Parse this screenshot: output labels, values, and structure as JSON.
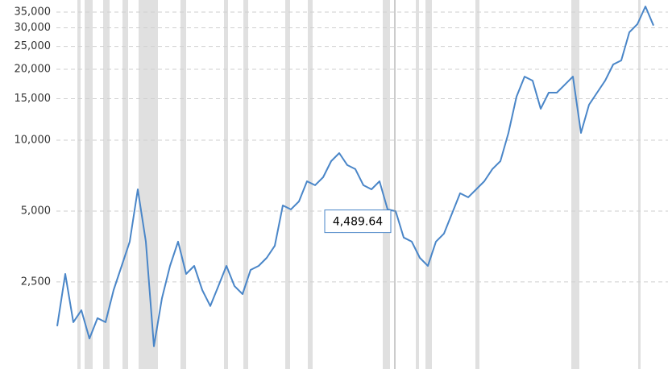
{
  "chart_data": {
    "type": "line",
    "log_scale": true,
    "grid": true,
    "series": [
      {
        "color": "#4a86c8",
        "values": [
          1622,
          2704,
          1686,
          1895,
          1437,
          1754,
          1686,
          2310,
          2924,
          3707,
          6185,
          3707,
          1332,
          2133,
          2924,
          3707,
          2704,
          2924,
          2310,
          1976,
          2401,
          2924,
          2401,
          2220,
          2813,
          2924,
          3164,
          3559,
          5281,
          5080,
          5495,
          6692,
          6436,
          6957,
          8147,
          8817,
          7835,
          7533,
          6436,
          6185,
          6692,
          5080,
          4996,
          3860,
          3707,
          3164,
          2924,
          3707,
          4011,
          4885,
          5947,
          5718,
          6185,
          6692,
          7533,
          8147,
          10734,
          15295,
          18620,
          17900,
          13596,
          15910,
          15910,
          17212,
          18620,
          10734,
          14138,
          15910,
          17900,
          20967,
          21810,
          28720,
          31080,
          36960,
          30670
        ]
      }
    ],
    "xlim": [
      0,
      74
    ],
    "ylim": [
      1067,
      39380
    ],
    "yticks": [
      {
        "value": 2500,
        "label": "2,500"
      },
      {
        "value": 5000,
        "label": "5,000"
      },
      {
        "value": 10000,
        "label": "10,000"
      },
      {
        "value": 15000,
        "label": "15,000"
      },
      {
        "value": 20000,
        "label": "20,000"
      },
      {
        "value": 25000,
        "label": "25,000"
      },
      {
        "value": 30000,
        "label": "30,000"
      },
      {
        "value": 35000,
        "label": "35,000"
      }
    ],
    "bands": [
      [
        2.5,
        2.9
      ],
      [
        3.4,
        4.4
      ],
      [
        5.7,
        6.5
      ],
      [
        8.1,
        8.8
      ],
      [
        10.1,
        12.5
      ],
      [
        15.3,
        16
      ],
      [
        20.7,
        21.2
      ],
      [
        23.1,
        23.7
      ],
      [
        28.3,
        28.9
      ],
      [
        31.1,
        31.7
      ],
      [
        40.4,
        41.3
      ],
      [
        44.5,
        44.9
      ],
      [
        45.7,
        46.5
      ],
      [
        51.9,
        52.4
      ],
      [
        63.8,
        64.8
      ],
      [
        72.1,
        72.4
      ]
    ],
    "band_color": "#e0e0e0",
    "hover": {
      "index": 41.9,
      "value": 4489.64,
      "label": "4,489.64"
    }
  }
}
